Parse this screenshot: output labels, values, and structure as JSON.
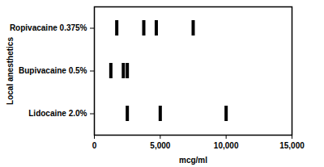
{
  "chart_data": {
    "type": "strip",
    "x_label": "mcg/ml",
    "y_label": "Local anesthetics",
    "categories": [
      "Ropivacaine 0.375%",
      "Bupivacaine 0.5%",
      "Lidocaine 2.0%"
    ],
    "values": [
      [
        1700,
        3750,
        4700,
        7500
      ],
      [
        1250,
        2200,
        2500
      ],
      [
        2500,
        5000,
        10000
      ]
    ],
    "color": "#000000",
    "marker": "tick",
    "xlim": [
      0,
      15000
    ],
    "xticks": [
      0,
      5000,
      10000,
      15000
    ],
    "grid": false
  }
}
